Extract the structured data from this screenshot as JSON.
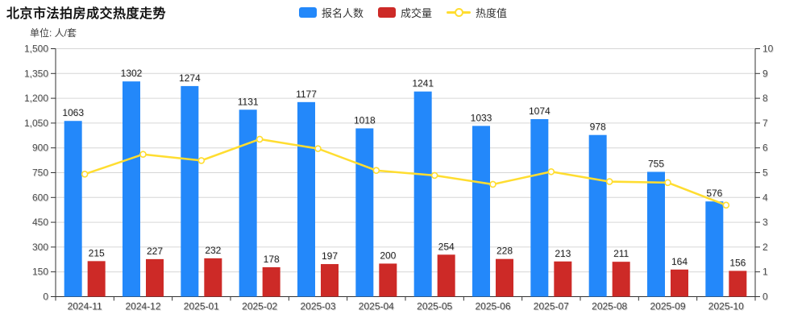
{
  "title": "北京市法拍房成交热度走势",
  "subtitle": "单位: 人/套",
  "legend": {
    "items": [
      {
        "label": "报名人数",
        "color": "#2388fa",
        "type": "bar"
      },
      {
        "label": "成交量",
        "color": "#cd2a27",
        "type": "bar"
      },
      {
        "label": "热度值",
        "color": "#ffdd30",
        "type": "line"
      }
    ]
  },
  "chart_data": {
    "type": "bar",
    "title": "北京市法拍房成交热度走势",
    "unit_note": "单位: 人/套",
    "categories": [
      "2024-11",
      "2024-12",
      "2025-01",
      "2025-02",
      "2025-03",
      "2025-04",
      "2025-05",
      "2025-06",
      "2025-07",
      "2025-08",
      "2025-09",
      "2025-10"
    ],
    "series": [
      {
        "name": "报名人数",
        "type": "bar",
        "axis": "left",
        "color": "#2388fa",
        "values": [
          1063,
          1302,
          1274,
          1131,
          1177,
          1018,
          1241,
          1033,
          1074,
          978,
          755,
          576
        ]
      },
      {
        "name": "成交量",
        "type": "bar",
        "axis": "left",
        "color": "#cd2a27",
        "values": [
          215,
          227,
          232,
          178,
          197,
          200,
          254,
          228,
          213,
          211,
          164,
          156
        ]
      },
      {
        "name": "热度值",
        "type": "line",
        "axis": "right",
        "color": "#ffdd30",
        "marker_fill": "#ffffff",
        "values": [
          4.94,
          5.74,
          5.49,
          6.35,
          5.97,
          5.09,
          4.89,
          4.53,
          5.04,
          4.64,
          4.6,
          3.69
        ]
      }
    ],
    "left_axis": {
      "min": 0,
      "max": 1500,
      "step": 150,
      "labels": [
        "0",
        "150",
        "300",
        "450",
        "600",
        "750",
        "900",
        "1,050",
        "1,200",
        "1,350",
        "1,500"
      ]
    },
    "right_axis": {
      "min": 0,
      "max": 10,
      "step": 1,
      "labels": [
        "0",
        "1",
        "2",
        "3",
        "4",
        "5",
        "6",
        "7",
        "8",
        "9",
        "10"
      ]
    },
    "grid": true,
    "legend_position": "top-center",
    "colors": {
      "grid_line": "#d6d6d6",
      "axis_line": "#333333",
      "tick_text": "#4d4d4d",
      "value_label_text": "#1f1f1f"
    }
  }
}
